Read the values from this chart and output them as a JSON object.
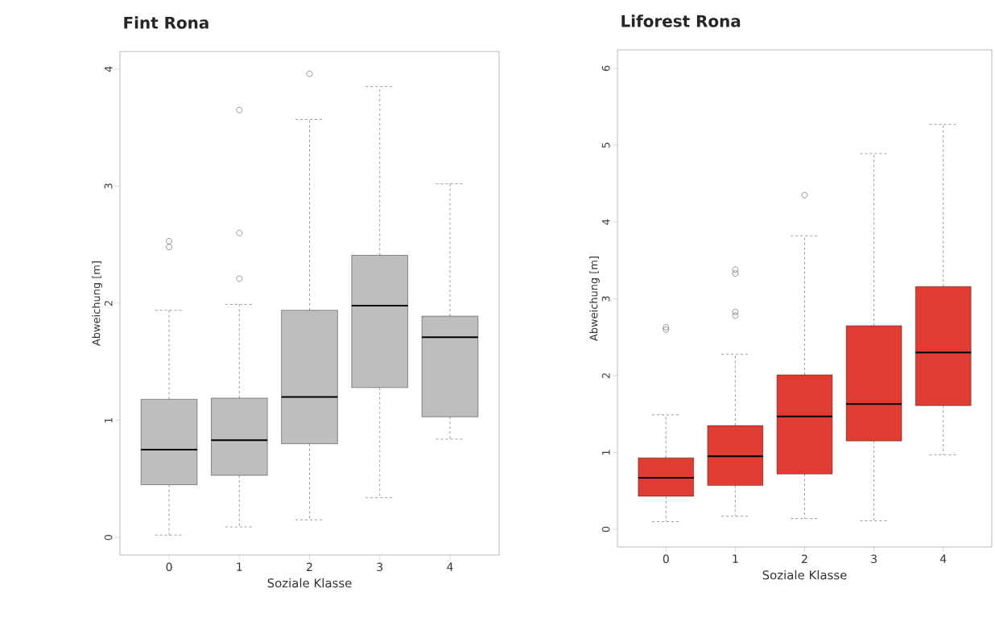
{
  "chart_data": [
    {
      "type": "box",
      "title": "Fint Rona",
      "xlabel": "Soziale Klasse",
      "ylabel": "Abweichung [m]",
      "categories": [
        "0",
        "1",
        "2",
        "3",
        "4"
      ],
      "color": "#bcbec0",
      "line_style": "dashed",
      "marker": "circle",
      "ylim": [
        -0.15,
        4.15
      ],
      "yticks": [
        0,
        1,
        2,
        3,
        4
      ],
      "boxes": [
        {
          "low": 0.02,
          "q1": 0.45,
          "median": 0.75,
          "q3": 1.18,
          "high": 1.94,
          "outliers": [
            2.48,
            2.53
          ]
        },
        {
          "low": 0.09,
          "q1": 0.53,
          "median": 0.83,
          "q3": 1.19,
          "high": 1.99,
          "outliers": [
            2.21,
            2.6,
            3.65
          ]
        },
        {
          "low": 0.15,
          "q1": 0.8,
          "median": 1.2,
          "q3": 1.94,
          "high": 3.57,
          "outliers": [
            3.96
          ]
        },
        {
          "low": 0.34,
          "q1": 1.28,
          "median": 1.98,
          "q3": 2.41,
          "high": 3.85
        },
        {
          "low": 0.84,
          "q1": 1.03,
          "median": 1.71,
          "q3": 1.89,
          "high": 3.02
        }
      ]
    },
    {
      "type": "box",
      "title": "Liforest Rona",
      "xlabel": "Soziale Klasse",
      "ylabel": "Abweichung [m]",
      "categories": [
        "0",
        "1",
        "2",
        "3",
        "4"
      ],
      "color": "#e03c32",
      "line_style": "dashed",
      "marker": "circle",
      "ylim": [
        -0.23,
        6.24
      ],
      "yticks": [
        0,
        1,
        2,
        3,
        4,
        5,
        6
      ],
      "boxes": [
        {
          "low": 0.1,
          "q1": 0.43,
          "median": 0.67,
          "q3": 0.93,
          "high": 1.49,
          "outliers": [
            2.6,
            2.63
          ]
        },
        {
          "low": 0.17,
          "q1": 0.57,
          "median": 0.95,
          "q3": 1.35,
          "high": 2.28,
          "outliers": [
            2.78,
            2.83,
            3.33,
            3.38
          ]
        },
        {
          "low": 0.14,
          "q1": 0.72,
          "median": 1.47,
          "q3": 2.01,
          "high": 3.82,
          "outliers": [
            4.35
          ]
        },
        {
          "low": 0.11,
          "q1": 1.15,
          "median": 1.63,
          "q3": 2.65,
          "high": 4.89
        },
        {
          "low": 0.97,
          "q1": 1.61,
          "median": 2.3,
          "q3": 3.16,
          "high": 5.27
        }
      ]
    }
  ]
}
